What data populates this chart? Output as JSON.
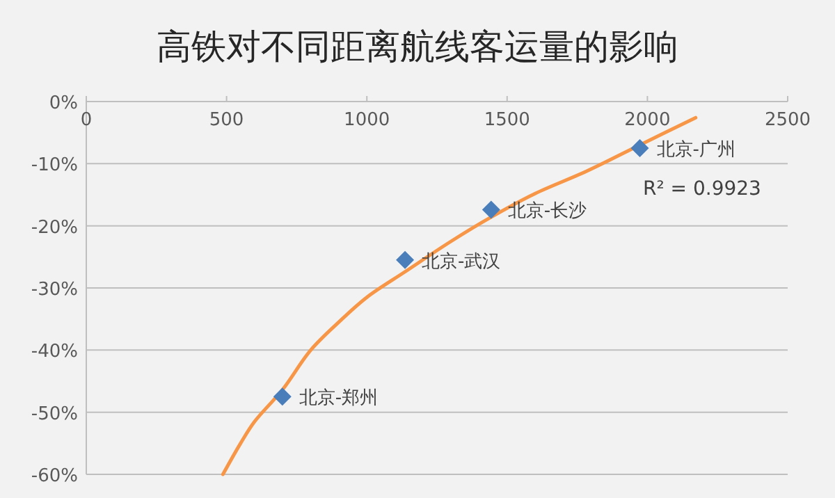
{
  "chart_data": {
    "type": "scatter",
    "title": "高铁对不同距离航线客运量的影响",
    "xlim": [
      0,
      2500
    ],
    "xticks": [
      0,
      500,
      1000,
      1500,
      2000,
      2500
    ],
    "ylim": [
      -60,
      0
    ],
    "yticks": [
      {
        "value": -60,
        "label": "-60%"
      },
      {
        "value": -50,
        "label": "-50%"
      },
      {
        "value": -40,
        "label": "-40%"
      },
      {
        "value": -30,
        "label": "-30%"
      },
      {
        "value": -20,
        "label": "-20%"
      },
      {
        "value": -10,
        "label": "-10%"
      },
      {
        "value": 0,
        "label": "0%"
      }
    ],
    "grid": "y",
    "series": [
      {
        "marker": "diamond",
        "color": "#4a7ebb",
        "x": [
          699,
          1136,
          1443,
          1973
        ],
        "values": [
          -47.5,
          -25.5,
          -17.4,
          -7.5
        ],
        "value_labels": [
          "北京-郑州",
          "北京-武汉",
          "北京-长沙",
          "北京-广州"
        ]
      },
      {
        "type": "line",
        "color": "#f79646",
        "line_style": "solid",
        "x": [
          487,
          550,
          600,
          699,
          800,
          900,
          1000,
          1136,
          1300,
          1443,
          1600,
          1784,
          1973,
          2172
        ],
        "values": [
          -60,
          -55,
          -51.5,
          -46.4,
          -40,
          -35.5,
          -31.5,
          -27.4,
          -22.5,
          -18.6,
          -14.8,
          -11.2,
          -7,
          -2.6
        ]
      }
    ],
    "annotations": [
      "R² = 0.9923"
    ]
  }
}
